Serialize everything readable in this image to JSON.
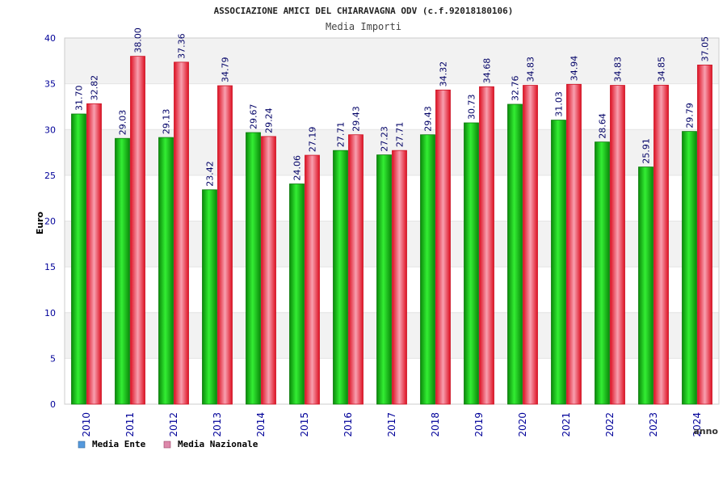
{
  "chart_data": {
    "type": "bar",
    "title": "ASSOCIAZIONE AMICI DEL CHIARAVAGNA ODV (c.f.92018180106)",
    "subtitle": "Media Importi",
    "xlabel": "anno",
    "ylabel": "Euro",
    "ylim": [
      0,
      40
    ],
    "yticks": [
      "0",
      "5",
      "10",
      "15",
      "20",
      "25",
      "30",
      "35",
      "40"
    ],
    "grid": true,
    "legend_position": "bottom-left",
    "categories": [
      "2010",
      "2011",
      "2012",
      "2013",
      "2014",
      "2015",
      "2016",
      "2017",
      "2018",
      "2019",
      "2020",
      "2021",
      "2022",
      "2023",
      "2024"
    ],
    "series": [
      {
        "name": "Media Ente",
        "color": "#22aa22",
        "legend_color": "#5599dd",
        "values": [
          31.7,
          29.03,
          29.13,
          23.42,
          29.67,
          24.06,
          27.71,
          27.23,
          29.43,
          30.73,
          32.76,
          31.03,
          28.64,
          25.91,
          29.79
        ],
        "labels": [
          "31.70",
          "29.03",
          "29.13",
          "23.42",
          "29.67",
          "24.06",
          "27.71",
          "27.23",
          "29.43",
          "30.73",
          "32.76",
          "31.03",
          "28.64",
          "25.91",
          "29.79"
        ]
      },
      {
        "name": "Media Nazionale",
        "color": "#ee2233",
        "legend_color": "#dd88aa",
        "values": [
          32.82,
          38.0,
          37.36,
          34.79,
          29.24,
          27.19,
          29.43,
          27.71,
          34.32,
          34.68,
          34.83,
          34.94,
          34.83,
          34.85,
          37.05
        ],
        "labels": [
          "32.82",
          "38.00",
          "37.36",
          "34.79",
          "29.24",
          "27.19",
          "29.43",
          "27.71",
          "34.32",
          "34.68",
          "34.83",
          "34.94",
          "34.83",
          "34.85",
          "37.05"
        ]
      }
    ],
    "colors": {
      "title": "#222222",
      "subtitle": "#444444",
      "axis_text": "#000099",
      "value_labels": "#000066",
      "legend_text": "#000000",
      "band_light": "#f2f2f2"
    }
  }
}
